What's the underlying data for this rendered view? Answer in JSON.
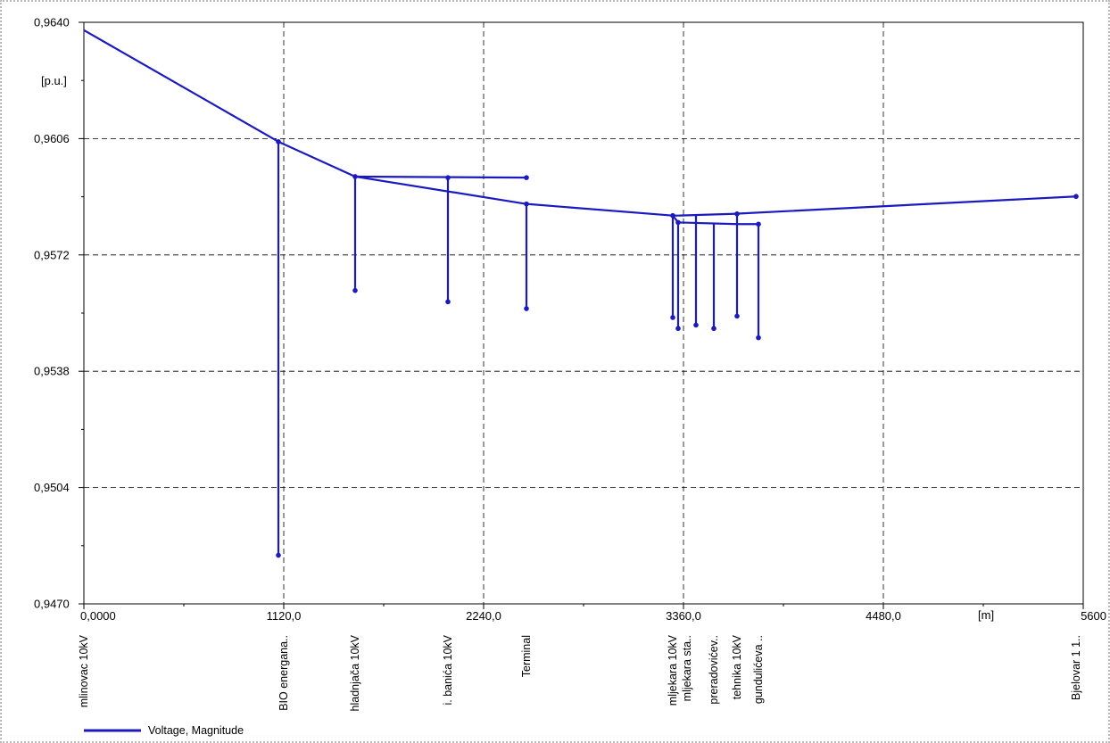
{
  "chart_data": {
    "type": "line",
    "xlim": [
      0,
      5600
    ],
    "ylim": [
      0.947,
      0.964
    ],
    "x_ticks": [
      {
        "value": 0,
        "label": "0,0000"
      },
      {
        "value": 1120,
        "label": "1120,0"
      },
      {
        "value": 2240,
        "label": "2240,0"
      },
      {
        "value": 3360,
        "label": "3360,0"
      },
      {
        "value": 4480,
        "label": "4480,0"
      },
      {
        "value": 5600,
        "label": "5600"
      }
    ],
    "y_ticks": [
      {
        "value": 0.964,
        "label": "0,9640"
      },
      {
        "value": 0.9606,
        "label": "0,9606"
      },
      {
        "value": 0.9572,
        "label": "0,9572"
      },
      {
        "value": 0.9538,
        "label": "0,9538"
      },
      {
        "value": 0.9504,
        "label": "0,9504"
      },
      {
        "value": 0.947,
        "label": "0,9470"
      }
    ],
    "ylabel": "[p.u.]",
    "xunit": "[m]",
    "grid": true,
    "legend": {
      "position": "bottom-left",
      "entries": [
        "Voltage, Magnitude"
      ]
    },
    "series_color": "#1a1ac0",
    "main_path": [
      {
        "x": 0,
        "y": 0.96377
      },
      {
        "x": 1090,
        "y": 0.96051
      },
      {
        "x": 1520,
        "y": 0.95949
      },
      {
        "x": 2480,
        "y": 0.95869
      },
      {
        "x": 3300,
        "y": 0.95835
      },
      {
        "x": 3330,
        "y": 0.95815
      },
      {
        "x": 3660,
        "y": 0.9581
      },
      {
        "x": 3780,
        "y": 0.9581
      }
    ],
    "main_path_2": [
      {
        "x": 3300,
        "y": 0.95835
      },
      {
        "x": 3330,
        "y": 0.95835
      },
      {
        "x": 3640,
        "y": 0.9584
      },
      {
        "x": 5560,
        "y": 0.95891
      }
    ],
    "segments": [
      {
        "x1": 1520,
        "y1": 0.95949,
        "x2": 2480,
        "y2": 0.95946
      },
      {
        "x1": 1090,
        "y1": 0.96051,
        "x2": 1090,
        "y2": 0.94842
      },
      {
        "x1": 1520,
        "y1": 0.95949,
        "x2": 1520,
        "y2": 0.95616
      },
      {
        "x1": 2040,
        "y1": 0.95946,
        "x2": 2040,
        "y2": 0.95583
      },
      {
        "x1": 2480,
        "y1": 0.95869,
        "x2": 2480,
        "y2": 0.95563
      },
      {
        "x1": 3300,
        "y1": 0.95835,
        "x2": 3300,
        "y2": 0.95537
      },
      {
        "x1": 3330,
        "y1": 0.95815,
        "x2": 3330,
        "y2": 0.95505
      },
      {
        "x1": 3430,
        "y1": 0.95835,
        "x2": 3430,
        "y2": 0.95515
      },
      {
        "x1": 3530,
        "y1": 0.9581,
        "x2": 3530,
        "y2": 0.95505
      },
      {
        "x1": 3660,
        "y1": 0.9584,
        "x2": 3660,
        "y2": 0.95541
      },
      {
        "x1": 3780,
        "y1": 0.9581,
        "x2": 3780,
        "y2": 0.95478
      }
    ],
    "nodes": [
      {
        "x": 1090,
        "y": 0.96051
      },
      {
        "x": 1090,
        "y": 0.94842
      },
      {
        "x": 1520,
        "y": 0.95949
      },
      {
        "x": 1520,
        "y": 0.95616
      },
      {
        "x": 2040,
        "y": 0.95946
      },
      {
        "x": 2040,
        "y": 0.95583
      },
      {
        "x": 2480,
        "y": 0.95946
      },
      {
        "x": 2480,
        "y": 0.95869
      },
      {
        "x": 2480,
        "y": 0.95563
      },
      {
        "x": 3300,
        "y": 0.95835
      },
      {
        "x": 3300,
        "y": 0.95537
      },
      {
        "x": 3330,
        "y": 0.95815
      },
      {
        "x": 3330,
        "y": 0.95505
      },
      {
        "x": 3430,
        "y": 0.95515
      },
      {
        "x": 3530,
        "y": 0.95505
      },
      {
        "x": 3660,
        "y": 0.9584
      },
      {
        "x": 3660,
        "y": 0.95541
      },
      {
        "x": 3780,
        "y": 0.9581
      },
      {
        "x": 3780,
        "y": 0.95478
      },
      {
        "x": 5560,
        "y": 0.95891
      }
    ],
    "bus_labels": [
      {
        "x": 0,
        "label": "mlinovac 10kV"
      },
      {
        "x": 1120,
        "label": "BIO energana.."
      },
      {
        "x": 1520,
        "label": "hladnjača 10kV"
      },
      {
        "x": 2040,
        "label": "i. banića 10kV"
      },
      {
        "x": 2480,
        "label": "Terminal"
      },
      {
        "x": 3300,
        "label": "mljekara 10kV"
      },
      {
        "x": 3380,
        "label": "mljekara sta.."
      },
      {
        "x": 3530,
        "label": "preradovićev.."
      },
      {
        "x": 3660,
        "label": "tehnika 10kV"
      },
      {
        "x": 3780,
        "label": "gundulićeva .."
      },
      {
        "x": 5560,
        "label": "Bjelovar 1 1.."
      }
    ]
  }
}
